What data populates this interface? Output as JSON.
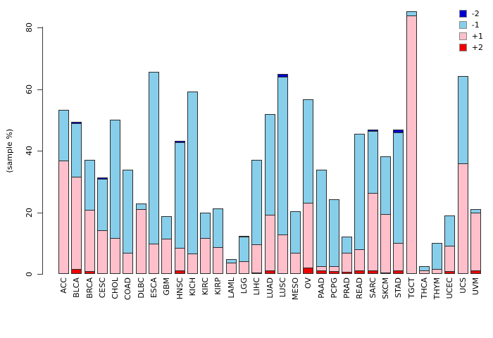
{
  "figure": {
    "y_axis_title": "(sample %)"
  },
  "chart_data": {
    "type": "bar",
    "stacked": true,
    "ylabel": "(sample %)",
    "xlabel": "",
    "ylim": [
      0,
      80
    ],
    "yticks": [
      0,
      20,
      40,
      60,
      80
    ],
    "grid": false,
    "legend_position": "top-right",
    "legend_order_top_to_bottom": [
      "-2",
      "-1",
      "+1",
      "+2"
    ],
    "categories": [
      "ACC",
      "BLCA",
      "BRCA",
      "CESC",
      "CHOL",
      "COAD",
      "DLBC",
      "ESCA",
      "GBM",
      "HNSC",
      "KICH",
      "KIRC",
      "KIRP",
      "LAML",
      "LGG",
      "LIHC",
      "LUAD",
      "LUSC",
      "MESO",
      "OV",
      "PAAD",
      "PCPG",
      "PRAD",
      "READ",
      "SARC",
      "SKCM",
      "STAD",
      "TGCT",
      "THCA",
      "THYM",
      "UCEC",
      "UCS",
      "UVM"
    ],
    "series": [
      {
        "name": "+2",
        "color": "#ee0000",
        "values": [
          0,
          1.7,
          0.9,
          0,
          0,
          0,
          0,
          0,
          0,
          1.1,
          0,
          0,
          0,
          0,
          0,
          0.5,
          1.1,
          0,
          0,
          2.1,
          1.1,
          0.9,
          0.7,
          1.1,
          1.2,
          0.3,
          1.2,
          0,
          0,
          0,
          1.0,
          0,
          1.2
        ]
      },
      {
        "name": "+1",
        "color": "#ffc0cb",
        "values": [
          36.8,
          30.2,
          20.2,
          14.2,
          11.7,
          6.8,
          21.0,
          9.8,
          11.4,
          7.7,
          6.6,
          11.7,
          8.7,
          3.6,
          4.2,
          9.3,
          18.3,
          12.9,
          6.8,
          21.3,
          1.7,
          1.9,
          6.3,
          7.2,
          25.4,
          19.1,
          9.0,
          83.8,
          1.1,
          1.7,
          8.3,
          36.0,
          18.8
        ]
      },
      {
        "name": "-1",
        "color": "#87ceeb",
        "values": [
          16.7,
          17.6,
          16.4,
          16.9,
          38.5,
          27.3,
          2.0,
          56.0,
          7.6,
          34.4,
          52.8,
          8.4,
          12.8,
          1.5,
          8.2,
          27.8,
          32.9,
          51.4,
          13.7,
          33.7,
          31.4,
          21.9,
          5.5,
          37.7,
          20.2,
          19.0,
          36.2,
          1.8,
          1.7,
          8.5,
          10.1,
          28.5,
          1.5
        ]
      },
      {
        "name": "-2",
        "color": "#0000cd",
        "values": [
          0,
          0.5,
          0,
          0.7,
          0,
          0,
          0,
          0,
          0,
          0.8,
          0,
          0,
          0,
          0,
          0.5,
          0,
          0,
          1.1,
          0,
          0,
          0,
          0,
          0,
          0,
          0.7,
          0,
          1.1,
          0,
          0,
          0,
          0,
          0,
          0
        ]
      }
    ]
  }
}
